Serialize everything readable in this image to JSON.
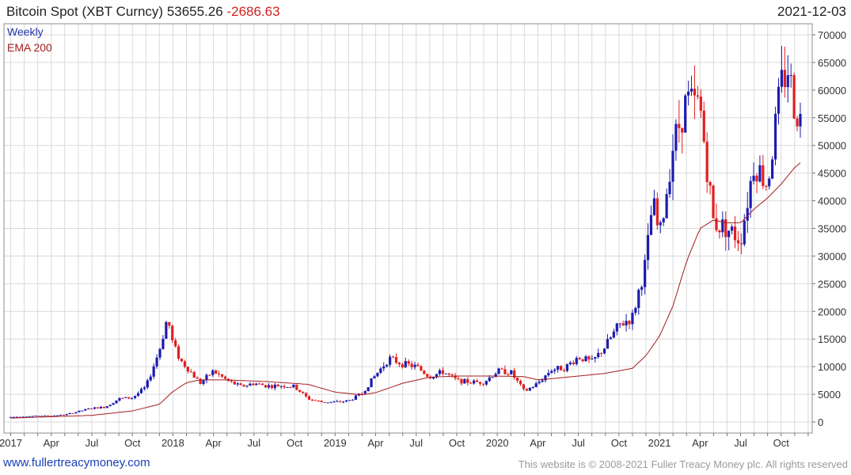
{
  "header": {
    "title": "Bitcoin Spot (XBT Curncy) 53655.26",
    "change": "-2686.63",
    "date": "2021-12-03"
  },
  "footer": {
    "link": "www.fullertreacymoney.com",
    "copyright": "This website is © 2008-2021 Fuller Treacy Money plc. All rights reserved"
  },
  "colors": {
    "up": "#1c1cae",
    "down": "#e11f1f",
    "ema": "#a31d1d",
    "grid": "#d9d9d9",
    "legend_weekly": "#2233aa",
    "legend_ema": "#a31d1d"
  },
  "chart_data": {
    "type": "candlestick",
    "legend": [
      "Weekly",
      "EMA 200"
    ],
    "y_ticks": [
      "0",
      "5000",
      "10000",
      "15000",
      "20000",
      "25000",
      "30000",
      "35000",
      "40000",
      "45000",
      "50000",
      "55000",
      "60000",
      "65000",
      "70000"
    ],
    "x_ticks": [
      "2017",
      "Apr",
      "Jul",
      "Oct",
      "2018",
      "Apr",
      "Jul",
      "Oct",
      "2019",
      "Apr",
      "Jul",
      "Oct",
      "2020",
      "Apr",
      "Jul",
      "Oct",
      "2021",
      "Apr",
      "Jul",
      "Oct"
    ],
    "x_tick_months": [
      0,
      3,
      6,
      9,
      12,
      15,
      18,
      21,
      24,
      27,
      30,
      33,
      36,
      39,
      42,
      45,
      48,
      51,
      54,
      57
    ],
    "ylim": [
      -2000,
      72000
    ],
    "xlim_months": [
      -0.5,
      59.3
    ],
    "grid": true,
    "price_points": [
      [
        0,
        900
      ],
      [
        1,
        1000
      ],
      [
        2,
        1100
      ],
      [
        3,
        1150
      ],
      [
        4,
        1300
      ],
      [
        5,
        1900
      ],
      [
        6,
        2500
      ],
      [
        7,
        2700
      ],
      [
        8,
        4200
      ],
      [
        9,
        4400
      ],
      [
        10,
        6300
      ],
      [
        11,
        13000
      ],
      [
        11.6,
        19000
      ],
      [
        12,
        14000
      ],
      [
        12.6,
        11000
      ],
      [
        13,
        10000
      ],
      [
        14,
        7000
      ],
      [
        15,
        9200
      ],
      [
        16,
        7500
      ],
      [
        17,
        6400
      ],
      [
        18,
        7000
      ],
      [
        19,
        6500
      ],
      [
        20,
        6600
      ],
      [
        21,
        6400
      ],
      [
        22,
        4200
      ],
      [
        23,
        3600
      ],
      [
        24,
        3600
      ],
      [
        25,
        3800
      ],
      [
        26,
        5200
      ],
      [
        27,
        8500
      ],
      [
        28,
        11500
      ],
      [
        29,
        10500
      ],
      [
        30,
        10000
      ],
      [
        31,
        8200
      ],
      [
        32,
        9100
      ],
      [
        33,
        7500
      ],
      [
        34,
        7200
      ],
      [
        35,
        7200
      ],
      [
        36,
        9200
      ],
      [
        37,
        9000
      ],
      [
        38,
        5500
      ],
      [
        39,
        7000
      ],
      [
        40,
        9500
      ],
      [
        41,
        9800
      ],
      [
        42,
        11800
      ],
      [
        43,
        10800
      ],
      [
        44,
        13700
      ],
      [
        45,
        17500
      ],
      [
        46,
        19000
      ],
      [
        47,
        29000
      ],
      [
        47.5,
        40000
      ],
      [
        48,
        33000
      ],
      [
        49,
        50000
      ],
      [
        50,
        58000
      ],
      [
        51,
        57000
      ],
      [
        52,
        36000
      ],
      [
        53,
        35000
      ],
      [
        54,
        33000
      ],
      [
        54.5,
        40000
      ],
      [
        55,
        47000
      ],
      [
        56,
        43000
      ],
      [
        57,
        61000
      ],
      [
        57.5,
        64000
      ],
      [
        58,
        57000
      ],
      [
        58.6,
        53600
      ]
    ],
    "ema_points": [
      [
        0,
        700
      ],
      [
        6,
        1200
      ],
      [
        9,
        2000
      ],
      [
        11,
        3200
      ],
      [
        12,
        5500
      ],
      [
        13,
        7100
      ],
      [
        14,
        7600
      ],
      [
        16,
        7600
      ],
      [
        19,
        7300
      ],
      [
        22,
        6800
      ],
      [
        24,
        5400
      ],
      [
        26,
        4900
      ],
      [
        27,
        5300
      ],
      [
        29,
        7000
      ],
      [
        31,
        8100
      ],
      [
        33,
        8300
      ],
      [
        36,
        8300
      ],
      [
        38,
        8200
      ],
      [
        39,
        7600
      ],
      [
        42,
        8300
      ],
      [
        44,
        8800
      ],
      [
        46,
        9700
      ],
      [
        47,
        12000
      ],
      [
        48,
        15500
      ],
      [
        49,
        21000
      ],
      [
        50,
        29000
      ],
      [
        51,
        35000
      ],
      [
        52,
        36500
      ],
      [
        53,
        36000
      ],
      [
        54,
        36000
      ],
      [
        55,
        38500
      ],
      [
        56,
        40500
      ],
      [
        57,
        43000
      ],
      [
        58,
        46000
      ],
      [
        58.6,
        47200
      ]
    ]
  }
}
